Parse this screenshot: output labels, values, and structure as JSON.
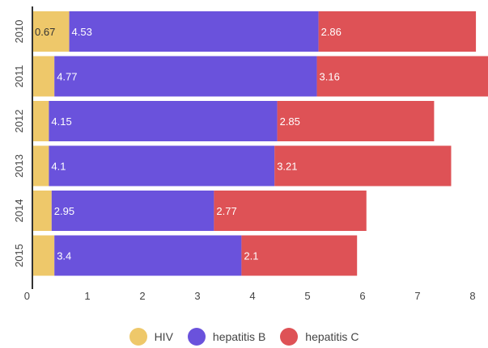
{
  "chart_data": {
    "type": "bar",
    "orientation": "horizontal",
    "stacked": true,
    "categories": [
      "2010",
      "2011",
      "2012",
      "2013",
      "2014",
      "2015"
    ],
    "series": [
      {
        "name": "HIV",
        "color": "#eec86a",
        "values": [
          0.67,
          0.4,
          0.3,
          0.3,
          0.35,
          0.4
        ],
        "labels": [
          "0.67",
          "",
          "",
          "",
          "",
          ""
        ]
      },
      {
        "name": "hepatitis B",
        "color": "#6a52dc",
        "values": [
          4.53,
          4.77,
          4.15,
          4.1,
          2.95,
          3.4
        ],
        "labels": [
          "4.53",
          "4.77",
          "4.15",
          "4.1",
          "2.95",
          "3.4"
        ]
      },
      {
        "name": "hepatitis C",
        "color": "#de5256",
        "values": [
          2.86,
          3.16,
          2.85,
          3.21,
          2.77,
          2.1
        ],
        "labels": [
          "2.86",
          "3.16",
          "2.85",
          "3.21",
          "2.77",
          "2.1"
        ]
      }
    ],
    "xlim": [
      0,
      8.5
    ],
    "xticks": [
      0,
      1,
      2,
      3,
      4,
      5,
      6,
      7,
      8
    ],
    "grid": false,
    "legend": "bottom"
  }
}
